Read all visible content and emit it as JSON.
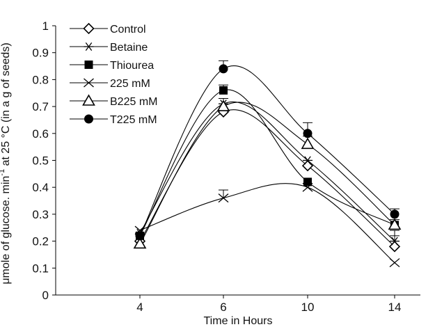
{
  "chart_data": {
    "type": "line",
    "title": "",
    "xlabel": "Time in Hours",
    "ylabel_parts": [
      "μmole  of glucose. min",
      "-1",
      "  at 25 °C (in a g of seeds)"
    ],
    "x_categories": [
      "4",
      "6",
      "10",
      "14"
    ],
    "x_tick_labels": [
      "4",
      "6",
      "10",
      "14"
    ],
    "y_ticks": [
      "0",
      "0.1",
      "0.2",
      "0.3",
      "0.4",
      "0.5",
      "0.6",
      "0.7",
      "0.8",
      "0.9",
      "1"
    ],
    "ylim": [
      0,
      1
    ],
    "legend_position": "top-left",
    "series": [
      {
        "name": "Control",
        "marker": "diamond-open",
        "points": [
          {
            "x": "4",
            "y": 0.2
          },
          {
            "x": "6",
            "y": 0.68
          },
          {
            "x": "10",
            "y": 0.48
          },
          {
            "x": "14",
            "y": 0.18
          }
        ]
      },
      {
        "name": "Betaine",
        "marker": "asterisk",
        "points": [
          {
            "x": "4",
            "y": 0.23
          },
          {
            "x": "6",
            "y": 0.71
          },
          {
            "x": "10",
            "y": 0.5
          },
          {
            "x": "14",
            "y": 0.2
          }
        ]
      },
      {
        "name": "Thiourea",
        "marker": "square-filled",
        "points": [
          {
            "x": "4",
            "y": 0.22
          },
          {
            "x": "6",
            "y": 0.76
          },
          {
            "x": "10",
            "y": 0.42
          },
          {
            "x": "14",
            "y": 0.26
          }
        ]
      },
      {
        "name": "225 mM",
        "marker": "x",
        "points": [
          {
            "x": "4",
            "y": 0.24
          },
          {
            "x": "6",
            "y": 0.36
          },
          {
            "x": "10",
            "y": 0.4
          },
          {
            "x": "14",
            "y": 0.12
          }
        ]
      },
      {
        "name": "B225 mM",
        "marker": "triangle-open",
        "points": [
          {
            "x": "4",
            "y": 0.19
          },
          {
            "x": "6",
            "y": 0.7
          },
          {
            "x": "10",
            "y": 0.56
          },
          {
            "x": "14",
            "y": 0.26
          }
        ]
      },
      {
        "name": "T225 mM",
        "marker": "circle-filled",
        "points": [
          {
            "x": "4",
            "y": 0.22
          },
          {
            "x": "6",
            "y": 0.84
          },
          {
            "x": "10",
            "y": 0.6
          },
          {
            "x": "14",
            "y": 0.3
          }
        ]
      }
    ],
    "error_bars": [
      {
        "series": "T225 mM",
        "x": "6",
        "upper": 0.87
      },
      {
        "series": "T225 mM",
        "x": "10",
        "upper": 0.64
      },
      {
        "series": "T225 mM",
        "x": "14",
        "upper": 0.32
      },
      {
        "series": "Thiourea",
        "x": "6",
        "upper": 0.78
      },
      {
        "series": "B225 mM",
        "x": "6",
        "upper": 0.73
      },
      {
        "series": "B225 mM",
        "x": "10",
        "upper": 0.59
      },
      {
        "series": "225 mM",
        "x": "6",
        "upper": 0.39
      },
      {
        "series": "Control",
        "x": "14",
        "upper": 0.22
      },
      {
        "series": "Betaine",
        "x": "14",
        "upper": 0.24
      },
      {
        "series": "Thiourea",
        "x": "14",
        "upper": 0.28
      }
    ]
  }
}
